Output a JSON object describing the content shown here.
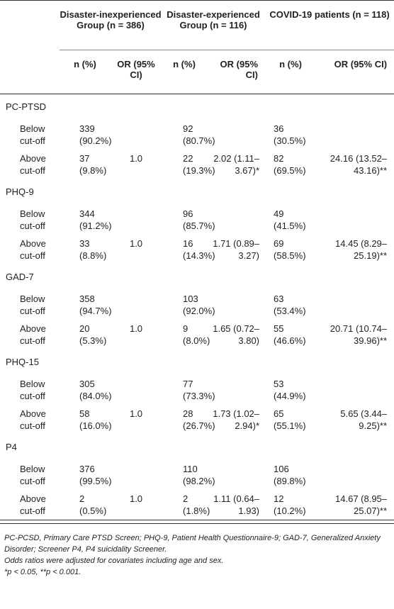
{
  "header": {
    "group1": "Disaster-inexperienced Group (n = 386)",
    "group2": "Disaster-experienced Group (n = 116)",
    "group3": "COVID-19 patients (n = 118)",
    "col_n": "n (%)",
    "col_or": "OR (95% CI)"
  },
  "sections": [
    {
      "title": "PC-PTSD",
      "rows": [
        {
          "label": "Below cut-off",
          "n1": "339 (90.2%)",
          "or1": "",
          "n2": "92 (80.7%)",
          "or2": "",
          "n3": "36 (30.5%)",
          "or3": ""
        },
        {
          "label": "Above cut-off",
          "n1": "37 (9.8%)",
          "or1": "1.0",
          "n2": "22 (19.3%)",
          "or2": "2.02 (1.11–3.67)*",
          "n3": "82 (69.5%)",
          "or3": "24.16 (13.52–43.16)**"
        }
      ]
    },
    {
      "title": "PHQ-9",
      "rows": [
        {
          "label": "Below cut-off",
          "n1": "344 (91.2%)",
          "or1": "",
          "n2": "96 (85.7%)",
          "or2": "",
          "n3": "49 (41.5%)",
          "or3": ""
        },
        {
          "label": "Above cut-off",
          "n1": "33 (8.8%)",
          "or1": "1.0",
          "n2": "16 (14.3%)",
          "or2": "1.71 (0.89–3.27)",
          "n3": "69 (58.5%)",
          "or3": "14.45 (8.29–25.19)**"
        }
      ]
    },
    {
      "title": "GAD-7",
      "rows": [
        {
          "label": "Below cut-off",
          "n1": "358 (94.7%)",
          "or1": "",
          "n2": "103 (92.0%)",
          "or2": "",
          "n3": "63 (53.4%)",
          "or3": ""
        },
        {
          "label": "Above cut-off",
          "n1": "20 (5.3%)",
          "or1": "1.0",
          "n2": "9 (8.0%)",
          "or2": "1.65 (0.72–3.80)",
          "n3": "55 (46.6%)",
          "or3": "20.71 (10.74–39.96)**"
        }
      ]
    },
    {
      "title": "PHQ-15",
      "rows": [
        {
          "label": "Below cut-off",
          "n1": "305 (84.0%)",
          "or1": "",
          "n2": "77 (73.3%)",
          "or2": "",
          "n3": "53 (44.9%)",
          "or3": ""
        },
        {
          "label": "Above cut-off",
          "n1": "58 (16.0%)",
          "or1": "1.0",
          "n2": "28 (26.7%)",
          "or2": "1.73 (1.02–2.94)*",
          "n3": "65 (55.1%)",
          "or3": "5.65 (3.44–9.25)**"
        }
      ]
    },
    {
      "title": "P4",
      "rows": [
        {
          "label": "Below cut-off",
          "n1": "376 (99.5%)",
          "or1": "",
          "n2": "110 (98.2%)",
          "or2": "",
          "n3": "106 (89.8%)",
          "or3": ""
        },
        {
          "label": "Above cut-off",
          "n1": "2 (0.5%)",
          "or1": "1.0",
          "n2": "2 (1.8%)",
          "or2": "1.11 (0.64–1.93)",
          "n3": "12 (10.2%)",
          "or3": "14.67 (8.95–25.07)**"
        }
      ]
    }
  ],
  "footnotes": [
    "PC-PCSD, Primary Care PTSD Screen; PHQ-9, Patient Health Questionnaire-9; GAD-7, Generalized Anxiety Disorder; Screener P4, P4 suicidality Screener.",
    "Odds ratios were adjusted for covariates including age and sex.",
    "*p < 0.05, **p < 0.001."
  ]
}
